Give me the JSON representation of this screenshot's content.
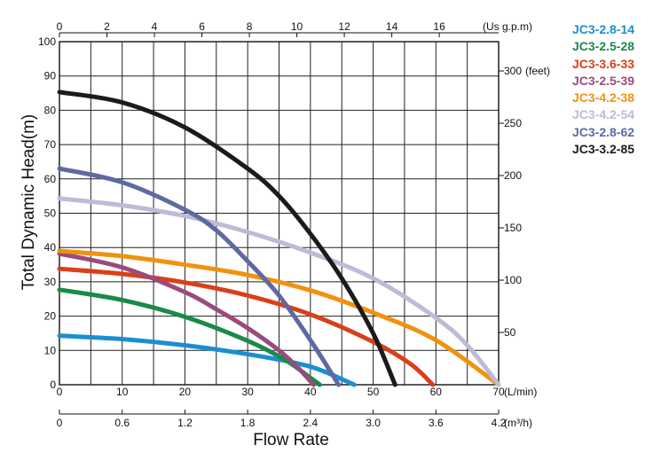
{
  "chart_data": {
    "type": "line",
    "title": "",
    "ylabel": "Total Dynamic Head(m)",
    "xlabel": "Flow Rate",
    "grid": true,
    "legend_position": "top-right",
    "x_primary": {
      "unit_label": "(L/min)",
      "range": [
        0,
        70
      ],
      "ticks": [
        "0",
        "10",
        "20",
        "30",
        "40",
        "50",
        "60",
        "70"
      ]
    },
    "x_top": {
      "unit_label": "(Us g.p.m)",
      "range": [
        0,
        18.5
      ],
      "ticks": [
        "0",
        "2",
        "4",
        "6",
        "8",
        "10",
        "12",
        "14",
        "16"
      ]
    },
    "x_bottom": {
      "unit_label": "(m³/h)",
      "range": [
        0,
        4.2
      ],
      "ticks": [
        "0",
        "0.6",
        "1.2",
        "1.8",
        "2.4",
        "3.0",
        "3.6",
        "4.2"
      ]
    },
    "y_left": {
      "range": [
        0,
        100
      ],
      "ticks": [
        "0",
        "10",
        "20",
        "30",
        "40",
        "50",
        "60",
        "70",
        "80",
        "90",
        "100"
      ]
    },
    "y_right": {
      "unit_label": "(feet)",
      "range": [
        0,
        328
      ],
      "ticks": [
        "50",
        "100",
        "150",
        "200",
        "250",
        "300"
      ]
    },
    "series": [
      {
        "name": "JC3-2.8-14",
        "color": "#1a8fd0",
        "x": [
          0,
          10,
          20,
          30,
          38,
          42,
          47
        ],
        "y": [
          14.3,
          13.3,
          11.5,
          8.9,
          6.2,
          4.0,
          0
        ]
      },
      {
        "name": "JC3-2.5-28",
        "color": "#1a8a4a",
        "x": [
          0,
          10,
          20,
          30,
          36,
          40,
          41.5
        ],
        "y": [
          27.7,
          24.7,
          19.8,
          12.8,
          7.2,
          2.0,
          0
        ]
      },
      {
        "name": "JC3-3.6-33",
        "color": "#d9401a",
        "x": [
          0,
          10,
          20,
          30,
          40,
          50,
          56,
          59.5
        ],
        "y": [
          33.8,
          32.3,
          29.8,
          26.0,
          20.5,
          12.5,
          6.0,
          0
        ]
      },
      {
        "name": "JC3-2.5-39",
        "color": "#9a4a7d",
        "x": [
          0,
          10,
          20,
          25,
          30,
          35,
          38,
          40.5
        ],
        "y": [
          38.2,
          34.2,
          27.0,
          22.0,
          16.5,
          10.0,
          5.0,
          0
        ]
      },
      {
        "name": "JC3-4.2-38",
        "color": "#f0920f",
        "x": [
          0,
          10,
          20,
          30,
          40,
          50,
          60,
          70
        ],
        "y": [
          39.0,
          37.5,
          35.0,
          32.0,
          27.5,
          21.0,
          13.0,
          0
        ]
      },
      {
        "name": "JC3-4.2-54",
        "color": "#bfbad6",
        "x": [
          0,
          10,
          20,
          30,
          40,
          50,
          60,
          65,
          70
        ],
        "y": [
          54.3,
          52.3,
          49.2,
          44.5,
          38.5,
          31.0,
          19.5,
          11.5,
          0
        ]
      },
      {
        "name": "JC3-2.8-62",
        "color": "#5d6aa2",
        "x": [
          0,
          10,
          20,
          25,
          30,
          35,
          40,
          44.5
        ],
        "y": [
          63.0,
          59.0,
          51.0,
          45.0,
          36.0,
          26.0,
          13.0,
          0
        ]
      },
      {
        "name": "JC3-3.2-85",
        "color": "#1b1b1b",
        "x": [
          0,
          10,
          20,
          30,
          35,
          40,
          45,
          50,
          53.5
        ],
        "y": [
          85.3,
          82.3,
          75.0,
          63.0,
          55.0,
          44.0,
          31.0,
          15.0,
          0
        ]
      }
    ]
  }
}
